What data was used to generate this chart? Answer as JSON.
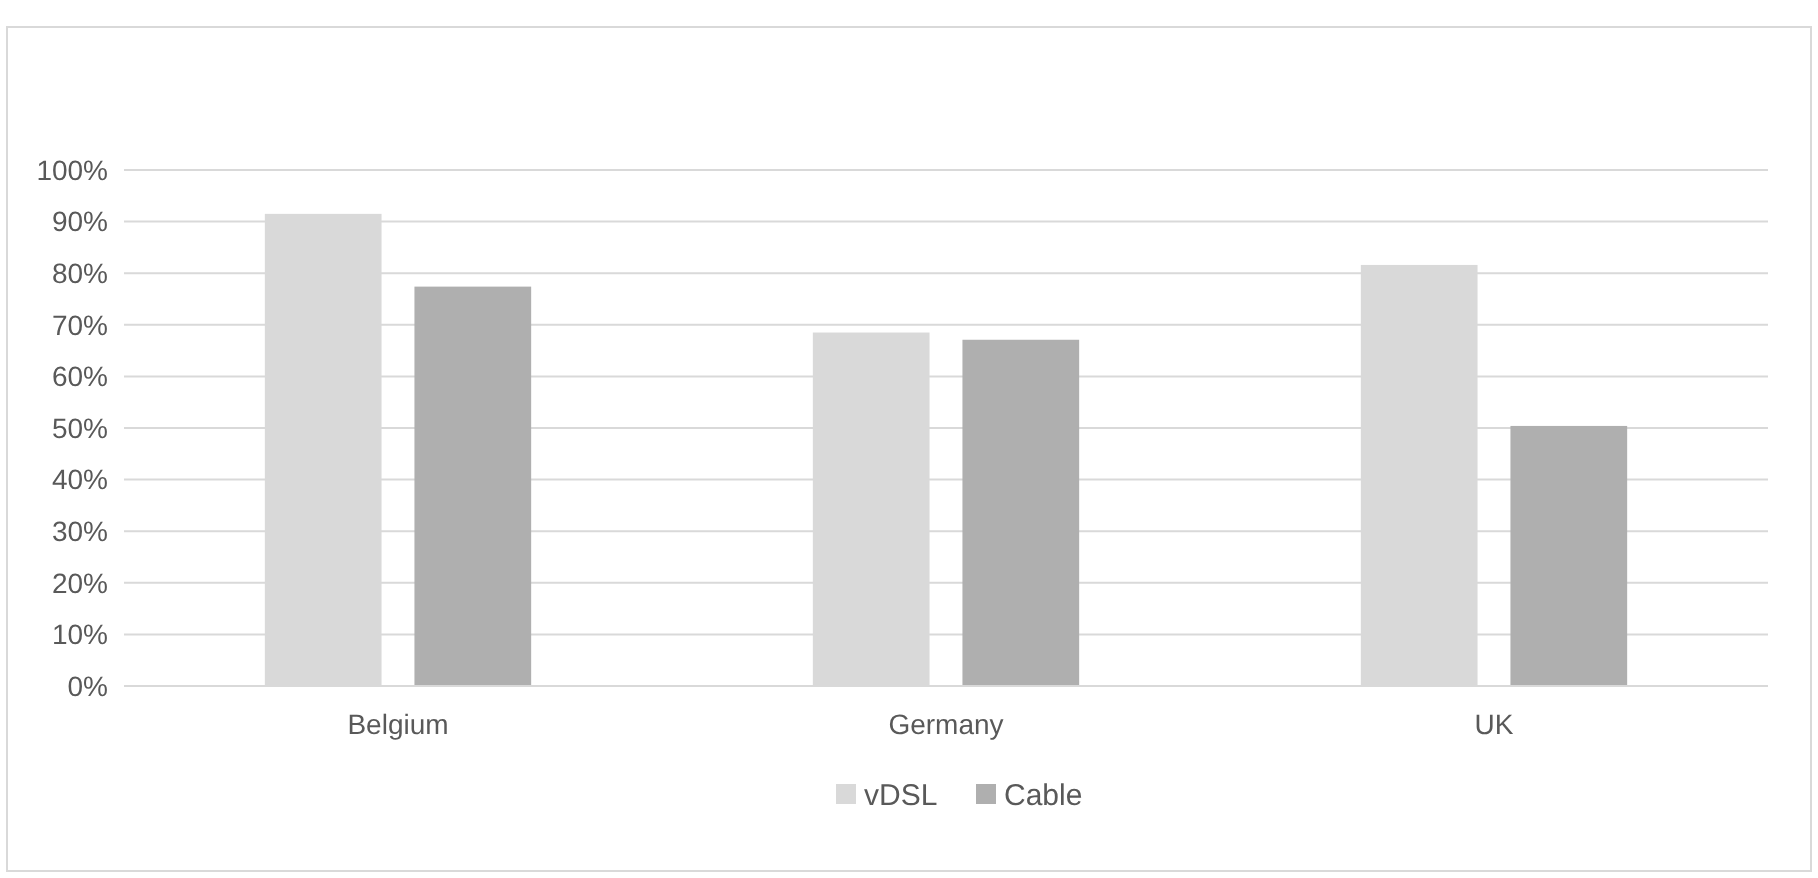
{
  "chart_data": {
    "type": "bar",
    "categories": [
      "Belgium",
      "Germany",
      "UK"
    ],
    "series": [
      {
        "name": "vDSL",
        "color": "#d9d9d9",
        "values": [
          91.5,
          68.5,
          81.6
        ]
      },
      {
        "name": "Cable",
        "color": "#afafaf",
        "values": [
          77.4,
          67.1,
          50.4
        ]
      }
    ],
    "ylim": [
      0,
      100
    ],
    "yticks": [
      {
        "value": 0,
        "label": "0%"
      },
      {
        "value": 10,
        "label": "10%"
      },
      {
        "value": 20,
        "label": "20%"
      },
      {
        "value": 30,
        "label": "30%"
      },
      {
        "value": 40,
        "label": "40%"
      },
      {
        "value": 50,
        "label": "50%"
      },
      {
        "value": 60,
        "label": "60%"
      },
      {
        "value": 70,
        "label": "70%"
      },
      {
        "value": 80,
        "label": "80%"
      },
      {
        "value": 90,
        "label": "90%"
      },
      {
        "value": 100,
        "label": "100%"
      }
    ],
    "grid": "y",
    "legend": "bottom"
  }
}
